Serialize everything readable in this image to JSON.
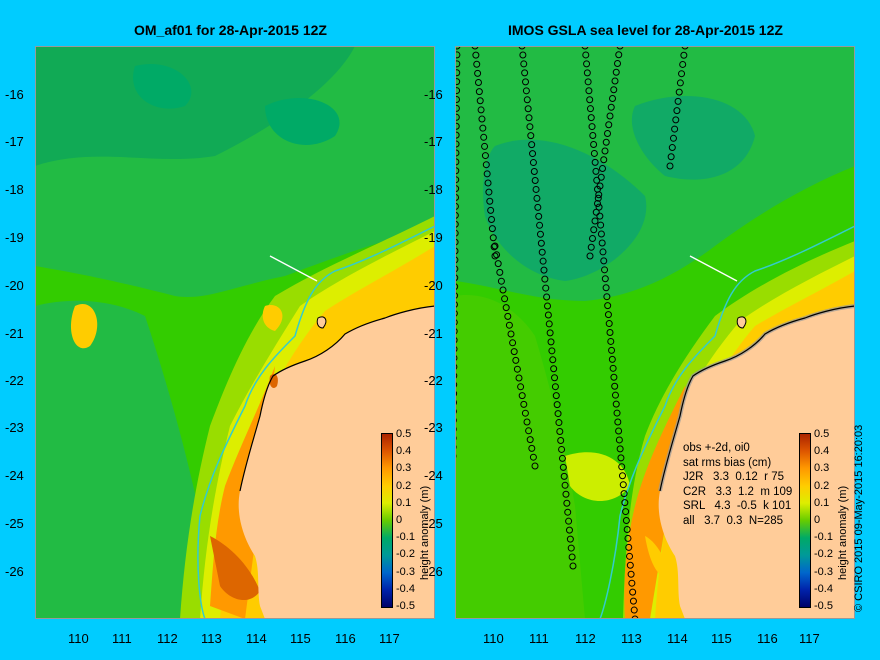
{
  "panels": [
    {
      "id": "left",
      "title": "OM_af01 for 28-Apr-2015 12Z"
    },
    {
      "id": "right",
      "title": "IMOS GSLA sea level  for 28-Apr-2015 12Z"
    }
  ],
  "y_ticks": [
    "-16",
    "-17",
    "-18",
    "-19",
    "-20",
    "-21",
    "-22",
    "-23",
    "-24",
    "-25",
    "-26"
  ],
  "x_ticks": [
    "110",
    "111",
    "112",
    "113",
    "114",
    "115",
    "116",
    "117"
  ],
  "colorbar": {
    "title": "height anomaly (m)",
    "labels": [
      "0.5",
      "0.4",
      "0.3",
      "0.2",
      "0.1",
      "0",
      "-0.1",
      "-0.2",
      "-0.3",
      "-0.4",
      "-0.5"
    ]
  },
  "stats": {
    "line1": "obs +-2d, oi0",
    "line2": "sat rms bias (cm)",
    "rows": [
      "J2R   3.3  0.12  r 75",
      "C2R   3.3  1.2  m 109",
      "SRL   4.3  -0.5  k 101",
      "all   3.7  0.3  N=285"
    ]
  },
  "credit": "© CSIRO 2015   09-May-2015 16:20:03",
  "colors": {
    "background": "#00ccff",
    "land": "#ffcc99",
    "ocean_base": "#33cc00",
    "coast_line": "#33cccc"
  }
}
